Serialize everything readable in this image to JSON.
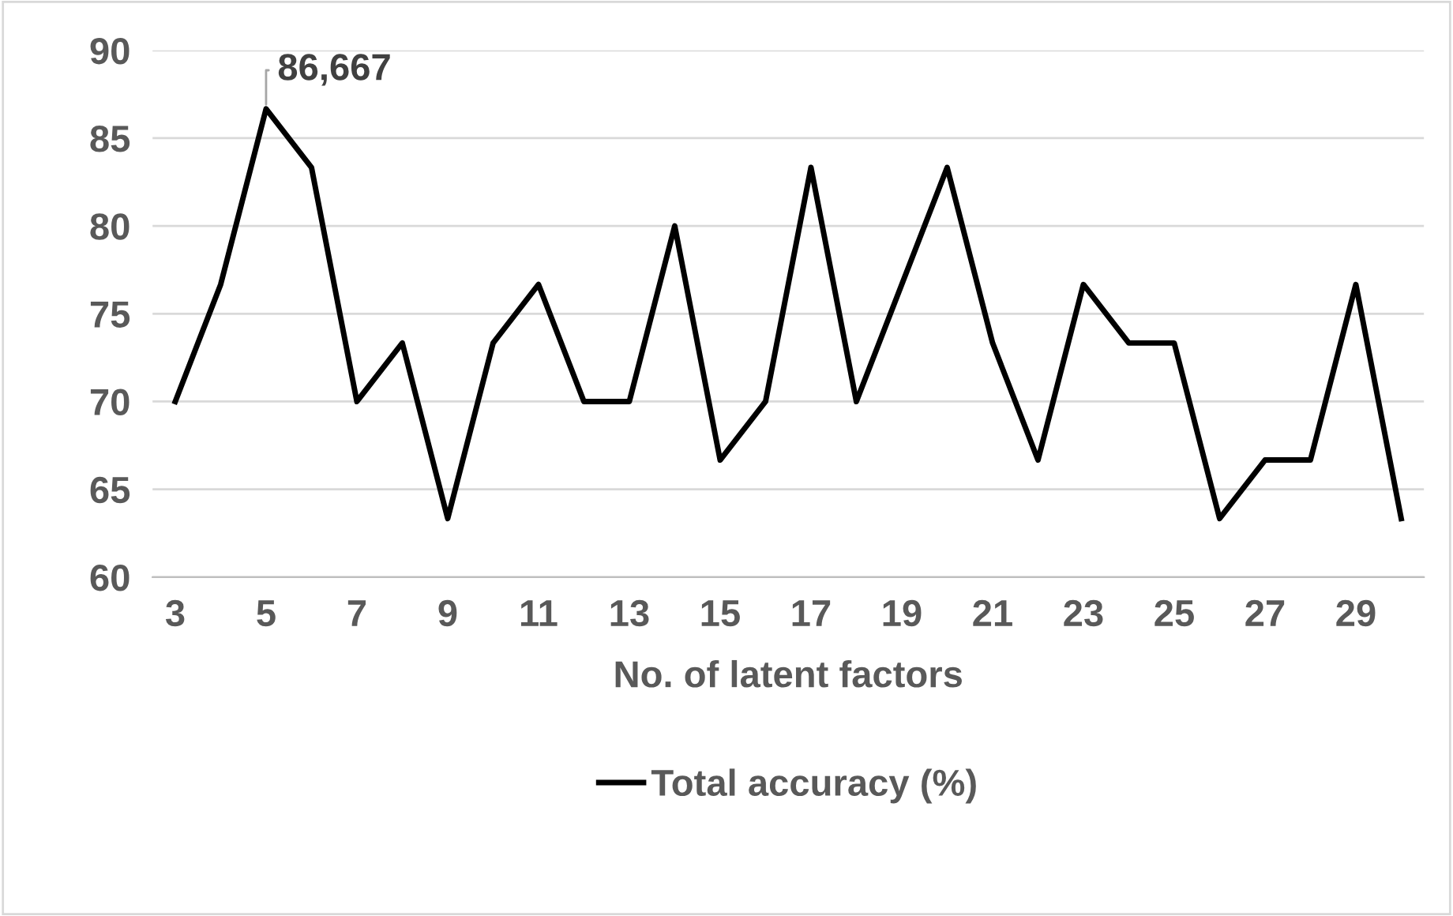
{
  "chart_data": {
    "type": "line",
    "xlabel": "No. of latent factors",
    "categories": [
      "3",
      null,
      "5",
      null,
      "7",
      null,
      "9",
      null,
      "11",
      null,
      "13",
      null,
      "15",
      null,
      "17",
      null,
      "19",
      null,
      "21",
      null,
      "23",
      null,
      "25",
      null,
      "27",
      null,
      "29",
      null
    ],
    "series": [
      {
        "name": "Total accuracy (%)",
        "color": "#000000",
        "values": [
          70,
          76.667,
          86.667,
          83.333,
          70,
          73.333,
          63.333,
          73.333,
          76.667,
          70,
          70,
          80,
          66.667,
          70,
          83.333,
          70,
          76.667,
          83.333,
          73.333,
          66.667,
          76.667,
          73.333,
          73.333,
          63.333,
          66.667,
          66.667,
          76.667,
          63.333
        ]
      }
    ],
    "annotations": [
      {
        "text": "86,667",
        "x": "5",
        "y": 86.667
      }
    ],
    "ylim": [
      60,
      90
    ],
    "yticks": [
      60,
      65,
      70,
      75,
      80,
      85,
      90
    ],
    "grid": "y",
    "legend": "bottom",
    "marker": "none",
    "line_style": "solid"
  }
}
